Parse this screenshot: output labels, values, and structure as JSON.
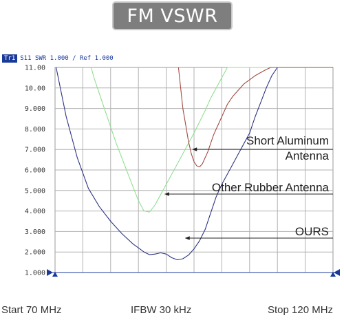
{
  "title": "FM VSWR",
  "header": {
    "trace_badge": "Tr1",
    "trace_info": "S11 SWR 1.000 / Ref 1.000"
  },
  "footer": {
    "start": "Start 70 MHz",
    "ifbw": "IFBW 30 kHz",
    "stop": "Stop 120 MHz"
  },
  "colors": {
    "ours": "#2c3384",
    "rubber": "#8fe08f",
    "aluminum": "#a04b42",
    "grid": "#b0b0b0",
    "axis": "#1a3a9a"
  },
  "chart_data": {
    "type": "line",
    "xlim": [
      70,
      120
    ],
    "ylim": [
      1.0,
      11.0
    ],
    "y_ticks": [
      "1.000",
      "2.000",
      "3.000",
      "4.000",
      "5.000",
      "6.000",
      "7.000",
      "8.000",
      "9.000",
      "10.00",
      "11.00"
    ],
    "grid": true,
    "series": [
      {
        "name": "OURS",
        "color": "#2c3384",
        "x": [
          70.2,
          72,
          74,
          76,
          78,
          80,
          82,
          84,
          85,
          86,
          87,
          88,
          89,
          90,
          91,
          92,
          93,
          94,
          95,
          96,
          97,
          98,
          99,
          100,
          101,
          102,
          103,
          104,
          105,
          106,
          107,
          108,
          109,
          110,
          111,
          112
        ],
        "y": [
          11.0,
          8.6,
          6.6,
          5.1,
          4.2,
          3.5,
          2.9,
          2.4,
          2.2,
          2.0,
          1.87,
          1.9,
          1.96,
          1.9,
          1.72,
          1.62,
          1.67,
          1.85,
          2.15,
          2.55,
          3.1,
          3.9,
          4.7,
          5.3,
          5.8,
          6.3,
          6.8,
          7.3,
          7.8,
          8.6,
          9.3,
          10.0,
          10.6,
          11.0,
          11.0,
          11.0
        ]
      },
      {
        "name": "Other Rubber Antenna",
        "color": "#8fe08f",
        "x": [
          76.5,
          77,
          78,
          79,
          80,
          81,
          82,
          83,
          84,
          85,
          86,
          87,
          88,
          89,
          90,
          91,
          92,
          93,
          94,
          95,
          96,
          97,
          98,
          99,
          100,
          101,
          102,
          103,
          104,
          105,
          106,
          107,
          108,
          109,
          110,
          111,
          112
        ],
        "y": [
          11.0,
          10.5,
          9.7,
          8.9,
          8.1,
          7.3,
          6.6,
          5.9,
          5.2,
          4.5,
          4.0,
          3.95,
          4.3,
          4.8,
          5.3,
          5.8,
          6.3,
          6.8,
          7.3,
          7.8,
          8.35,
          8.9,
          9.5,
          10.0,
          10.5,
          11.0,
          11.0,
          11.0,
          11.0,
          11.0,
          11.0,
          11.0,
          11.0,
          11.0,
          11.0,
          11.0,
          11.0
        ]
      },
      {
        "name": "Short Aluminum Antenna",
        "color": "#a04b42",
        "x": [
          92.2,
          92.6,
          93,
          93.5,
          94,
          94.5,
          95,
          95.5,
          96,
          96.5,
          97,
          97.5,
          98,
          98.5,
          99,
          99.5,
          100,
          101,
          102,
          103,
          104,
          105,
          106,
          107,
          108,
          108.8,
          109.5,
          110,
          111,
          112
        ],
        "y": [
          11.0,
          10.0,
          9.0,
          8.2,
          7.4,
          6.8,
          6.4,
          6.2,
          6.15,
          6.3,
          6.6,
          6.9,
          7.3,
          7.7,
          8.0,
          8.3,
          8.6,
          9.2,
          9.6,
          9.9,
          10.2,
          10.4,
          10.6,
          10.75,
          10.9,
          11.0,
          11.0,
          11.0,
          11.0,
          11.0
        ]
      }
    ],
    "annotations": [
      {
        "label_lines": [
          "Short Aluminum",
          "Antenna"
        ],
        "target_x": 94.5,
        "target_y": 7.1
      },
      {
        "label_lines": [
          "Other Rubber Antenna"
        ],
        "target_x": 89.5,
        "target_y": 4.9
      },
      {
        "label_lines": [
          "OURS"
        ],
        "target_x": 93.2,
        "target_y": 2.7
      }
    ]
  }
}
